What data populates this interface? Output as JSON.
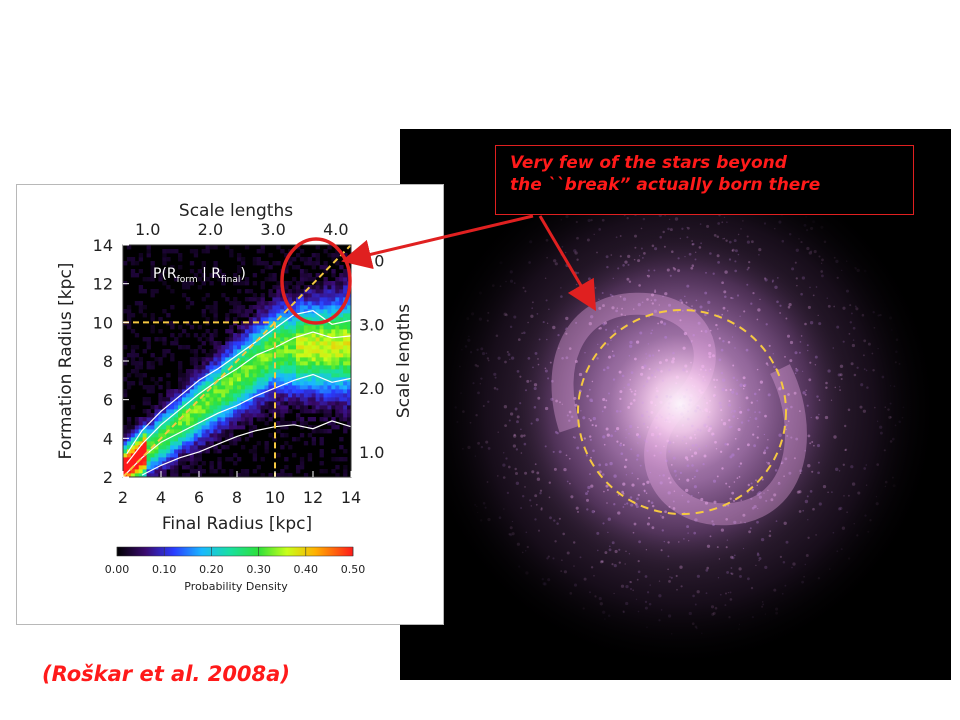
{
  "annotation": {
    "line1": "Very few of the stars beyond",
    "line2": "the ``break” actually born there"
  },
  "citation": "(Roškar et al. 2008a)",
  "colors": {
    "accent": "#ff1a1a",
    "dashed": "#f5c842",
    "contour": "#ffffff"
  },
  "galaxy_image": {
    "depicts": "simulated-spiral-galaxy"
  },
  "chart_data": {
    "type": "heatmap",
    "title": "",
    "panel_label": "P(R",
    "panel_label_sub1": "form",
    "panel_label_mid": " | R",
    "panel_label_sub2": "final",
    "panel_label_end": ")",
    "xlabel": "Final Radius [kpc]",
    "ylabel": "Formation Radius [kpc]",
    "top_axis_label": "Scale lengths",
    "right_axis_label": "Scale lengths",
    "xlim": [
      2,
      14
    ],
    "ylim": [
      2,
      14
    ],
    "x_ticks": [
      "2",
      "4",
      "6",
      "8",
      "10",
      "12",
      "14"
    ],
    "y_ticks": [
      "2",
      "4",
      "6",
      "8",
      "10",
      "12",
      "14"
    ],
    "top_ticks": [
      "1.0",
      "2.0",
      "3.0",
      "4.0"
    ],
    "top_tick_values": [
      1.0,
      2.0,
      3.0,
      4.0
    ],
    "right_ticks": [
      "1.0",
      "2.0",
      "3.0",
      "4.0"
    ],
    "right_tick_values": [
      1.0,
      2.0,
      3.0,
      4.0
    ],
    "scale_length_kpc": 3.3,
    "break_radius_kpc": 10,
    "colorbar": {
      "label": "Probability Density",
      "ticks": [
        "0.00",
        "0.10",
        "0.20",
        "0.30",
        "0.40",
        "0.50"
      ],
      "range": [
        0.0,
        0.5
      ]
    },
    "contours": [
      {
        "name": "",
        "x": [
          2.2,
          3,
          4,
          5,
          6,
          7,
          8,
          9,
          10,
          11,
          12,
          13,
          14
        ],
        "y": [
          3.2,
          4.4,
          5.4,
          6.2,
          7.0,
          7.6,
          8.3,
          9.0,
          9.7,
          10.4,
          10.6,
          9.9,
          10.1
        ]
      },
      {
        "name": "",
        "x": [
          2.2,
          3,
          4,
          5,
          6,
          7,
          8,
          9,
          10,
          11,
          12,
          13,
          14
        ],
        "y": [
          2.7,
          3.7,
          4.7,
          5.5,
          6.3,
          7.0,
          7.6,
          8.3,
          8.7,
          9.2,
          9.5,
          9.2,
          9.3
        ]
      },
      {
        "name": "",
        "x": [
          2.2,
          3,
          4,
          5,
          6,
          7,
          8,
          9,
          10,
          11,
          12,
          13,
          14
        ],
        "y": [
          2.2,
          3.0,
          3.8,
          4.3,
          4.8,
          5.3,
          5.7,
          6.2,
          6.6,
          7.0,
          7.3,
          6.9,
          7.1
        ]
      },
      {
        "name": "",
        "x": [
          3,
          4,
          5,
          6,
          7,
          8,
          9,
          10,
          11,
          12,
          13,
          14
        ],
        "y": [
          2.1,
          2.6,
          3.0,
          3.3,
          3.7,
          4.1,
          4.4,
          4.6,
          4.7,
          4.5,
          4.9,
          4.6
        ]
      }
    ]
  }
}
